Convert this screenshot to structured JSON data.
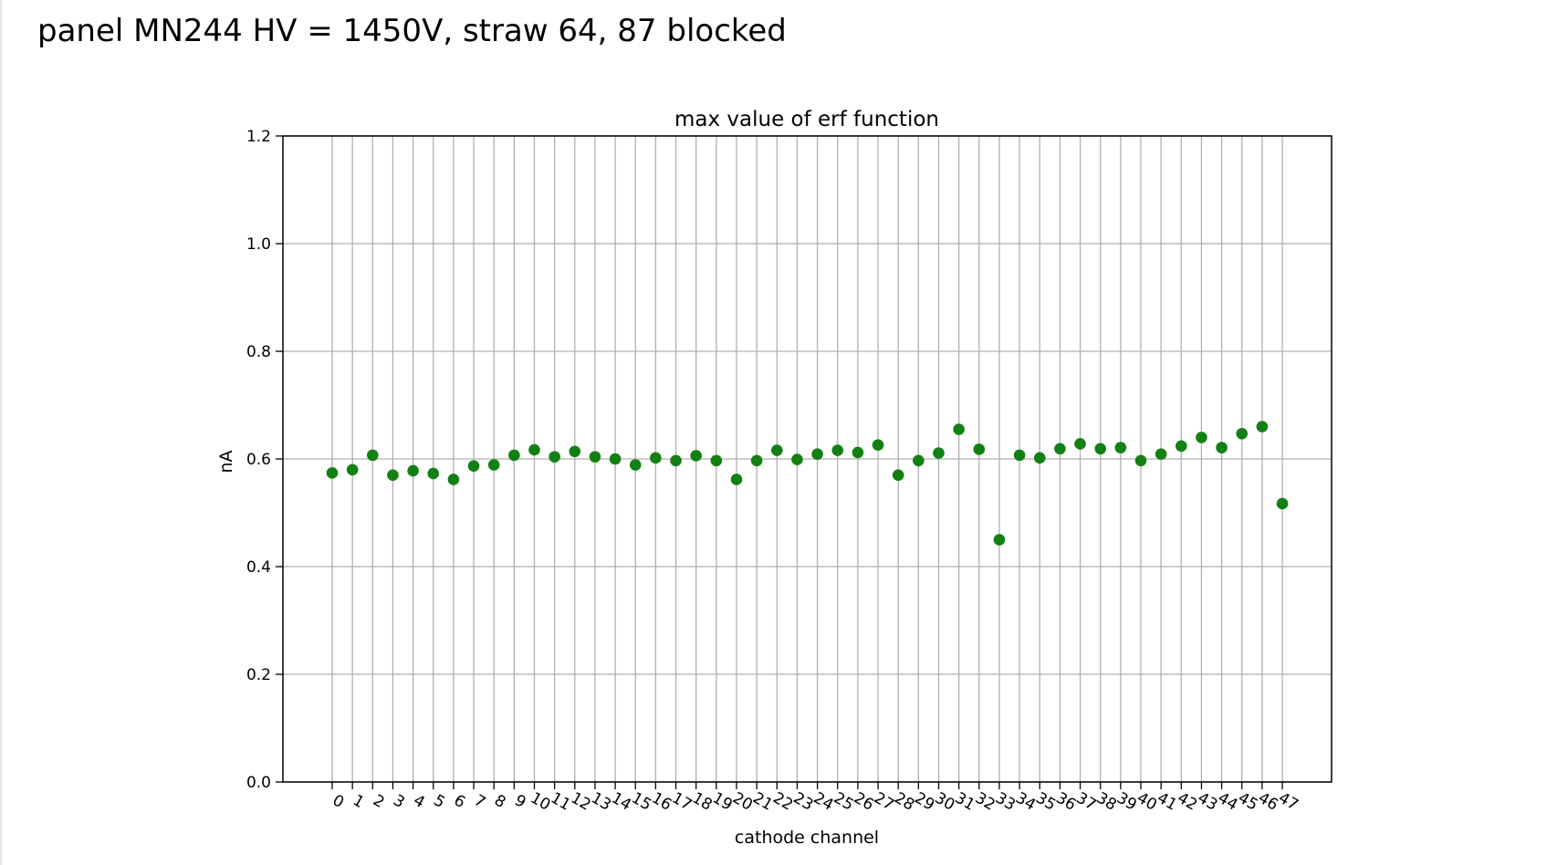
{
  "slide": {
    "title": "panel MN244 HV = 1450V, straw 64, 87 blocked"
  },
  "chart_data": {
    "type": "scatter",
    "title": "max value of erf function",
    "xlabel": "cathode channel",
    "ylabel": "nA",
    "ylim": [
      0.0,
      1.2
    ],
    "yticks": [
      "0.0",
      "0.2",
      "0.4",
      "0.6",
      "0.8",
      "1.0",
      "1.2"
    ],
    "grid": true,
    "marker_color": "#138013",
    "x": [
      0,
      1,
      2,
      3,
      4,
      5,
      6,
      7,
      8,
      9,
      10,
      11,
      12,
      13,
      14,
      15,
      16,
      17,
      18,
      19,
      20,
      21,
      22,
      23,
      24,
      25,
      26,
      27,
      28,
      29,
      30,
      31,
      32,
      33,
      34,
      35,
      36,
      37,
      38,
      39,
      40,
      41,
      42,
      43,
      44,
      45,
      46,
      47
    ],
    "xticks": [
      "0",
      "1",
      "2",
      "3",
      "4",
      "5",
      "6",
      "7",
      "8",
      "9",
      "10",
      "11",
      "12",
      "13",
      "14",
      "15",
      "16",
      "17",
      "18",
      "19",
      "20",
      "21",
      "22",
      "23",
      "24",
      "25",
      "26",
      "27",
      "28",
      "29",
      "30",
      "31",
      "32",
      "33",
      "34",
      "35",
      "36",
      "37",
      "38",
      "39",
      "40",
      "41",
      "42",
      "43",
      "44",
      "45",
      "46",
      "47"
    ],
    "y": [
      0.574,
      0.58,
      0.607,
      0.57,
      0.578,
      0.573,
      0.562,
      0.587,
      0.589,
      0.607,
      0.617,
      0.604,
      0.614,
      0.604,
      0.6,
      0.589,
      0.602,
      0.597,
      0.606,
      0.597,
      0.562,
      0.597,
      0.616,
      0.599,
      0.609,
      0.616,
      0.612,
      0.626,
      0.57,
      0.597,
      0.611,
      0.655,
      0.618,
      0.45,
      0.607,
      0.602,
      0.619,
      0.628,
      0.619,
      0.621,
      0.597,
      0.609,
      0.624,
      0.64,
      0.621,
      0.647,
      0.66,
      0.517
    ]
  }
}
